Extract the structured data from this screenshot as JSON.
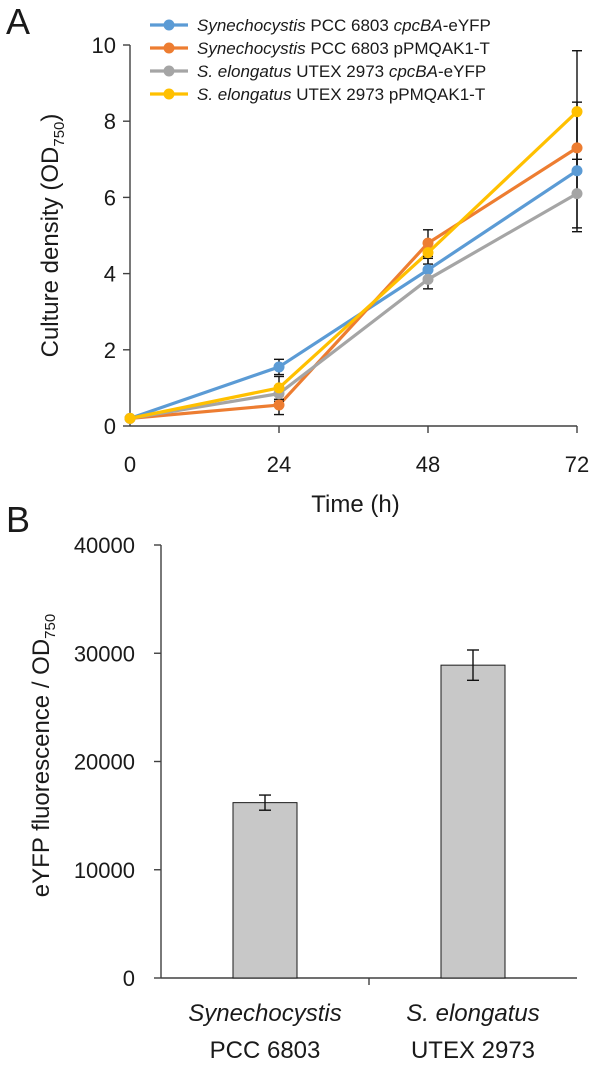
{
  "chart_data": [
    {
      "type": "line",
      "panel_label": "A",
      "ylabel_prefix": "Culture density (OD",
      "ylabel_sub": "750",
      "ylabel_suffix": ")",
      "xlabel": "Time (h)",
      "x": [
        0,
        24,
        48,
        72
      ],
      "x_ticks": [
        "0",
        "24",
        "48",
        "72"
      ],
      "ylim": [
        0,
        10
      ],
      "y_ticks": [
        "0",
        "2",
        "4",
        "6",
        "8",
        "10"
      ],
      "legend_position": "top-left",
      "series": [
        {
          "name_italic": "Synechocystis",
          "name_rest": " PCC 6803 ",
          "name_italic2": "cpcBA",
          "name_tail": "-eYFP",
          "color": "#5B9BD5",
          "values": [
            0.2,
            1.55,
            4.1,
            6.7
          ],
          "errors": [
            0.03,
            0.2,
            0.3,
            1.6
          ]
        },
        {
          "name_italic": "Synechocystis",
          "name_rest": " PCC 6803  pPMQAK1-T",
          "name_italic2": "",
          "name_tail": "",
          "color": "#ED7D31",
          "values": [
            0.2,
            0.55,
            4.8,
            7.3
          ],
          "errors": [
            0.03,
            0.25,
            0.35,
            1.2
          ]
        },
        {
          "name_italic": "S. elongatus",
          "name_rest": " UTEX 2973  ",
          "name_italic2": "cpcBA",
          "name_tail": "-eYFP",
          "color": "#A5A5A5",
          "values": [
            0.2,
            0.85,
            3.85,
            6.1
          ],
          "errors": [
            0.03,
            0.2,
            0.25,
            0.9
          ]
        },
        {
          "name_italic": "S. elongatus",
          "name_rest": " UTEX 2973  pPMQAK1-T",
          "name_italic2": "",
          "name_tail": "",
          "color": "#FFC000",
          "values": [
            0.2,
            1.0,
            4.55,
            8.25
          ],
          "errors": [
            0.03,
            0.3,
            0.3,
            1.6
          ]
        }
      ]
    },
    {
      "type": "bar",
      "panel_label": "B",
      "ylabel_prefix": "eYFP fluorescence / OD",
      "ylabel_sub": "750",
      "categories": [
        {
          "line1": "Synechocystis",
          "line2": "PCC 6803"
        },
        {
          "line1": "S. elongatus",
          "line2": "UTEX 2973"
        }
      ],
      "values": [
        16200,
        28900
      ],
      "errors": [
        700,
        1400
      ],
      "ylim": [
        0,
        40000
      ],
      "y_ticks": [
        "0",
        "10000",
        "20000",
        "30000",
        "40000"
      ],
      "bar_color": "#C8C8C8",
      "bar_edge": "#1a1a1a"
    }
  ]
}
